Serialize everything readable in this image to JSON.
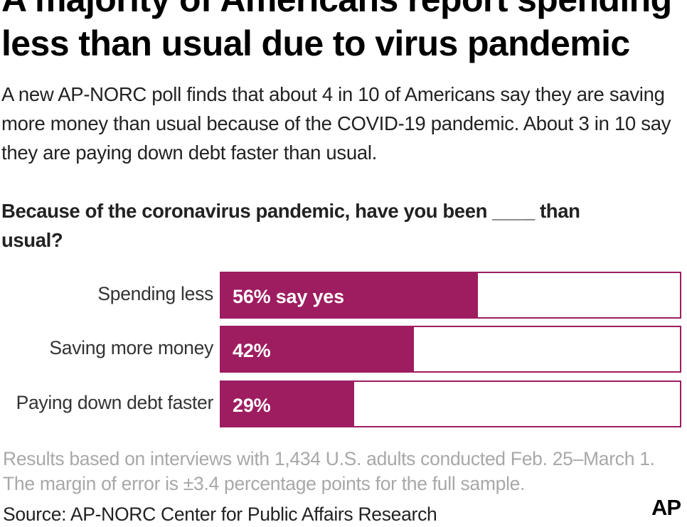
{
  "title": "A majority of Americans report spending less than usual due to virus pandemic",
  "subtitle": "A new AP-NORC poll finds that about 4 in 10 of Americans say they are saving more money than usual because of the COVID-19 pandemic. About 3 in 10 say they are paying down debt faster than usual.",
  "question": "Because of the coronavirus pandemic, have you been ____ than usual?",
  "note": "Results based on interviews with 1,434 U.S. adults conducted Feb. 25–March 1. The margin of error is ±3.4 percentage points for the full sample.",
  "source": "Source: AP-NORC Center for Public Affairs Research",
  "logo": "AP",
  "colors": {
    "bar": "#9e1d60",
    "note_text": "#a8a8a8"
  },
  "chart_data": {
    "type": "bar",
    "orientation": "horizontal",
    "categories": [
      "Spending less",
      "Saving more money",
      "Paying down debt faster"
    ],
    "values": [
      56,
      42,
      29
    ],
    "value_labels": [
      "56% say yes",
      "42%",
      "29%"
    ],
    "xlim": [
      0,
      100
    ],
    "grid": false,
    "legend": "none"
  }
}
